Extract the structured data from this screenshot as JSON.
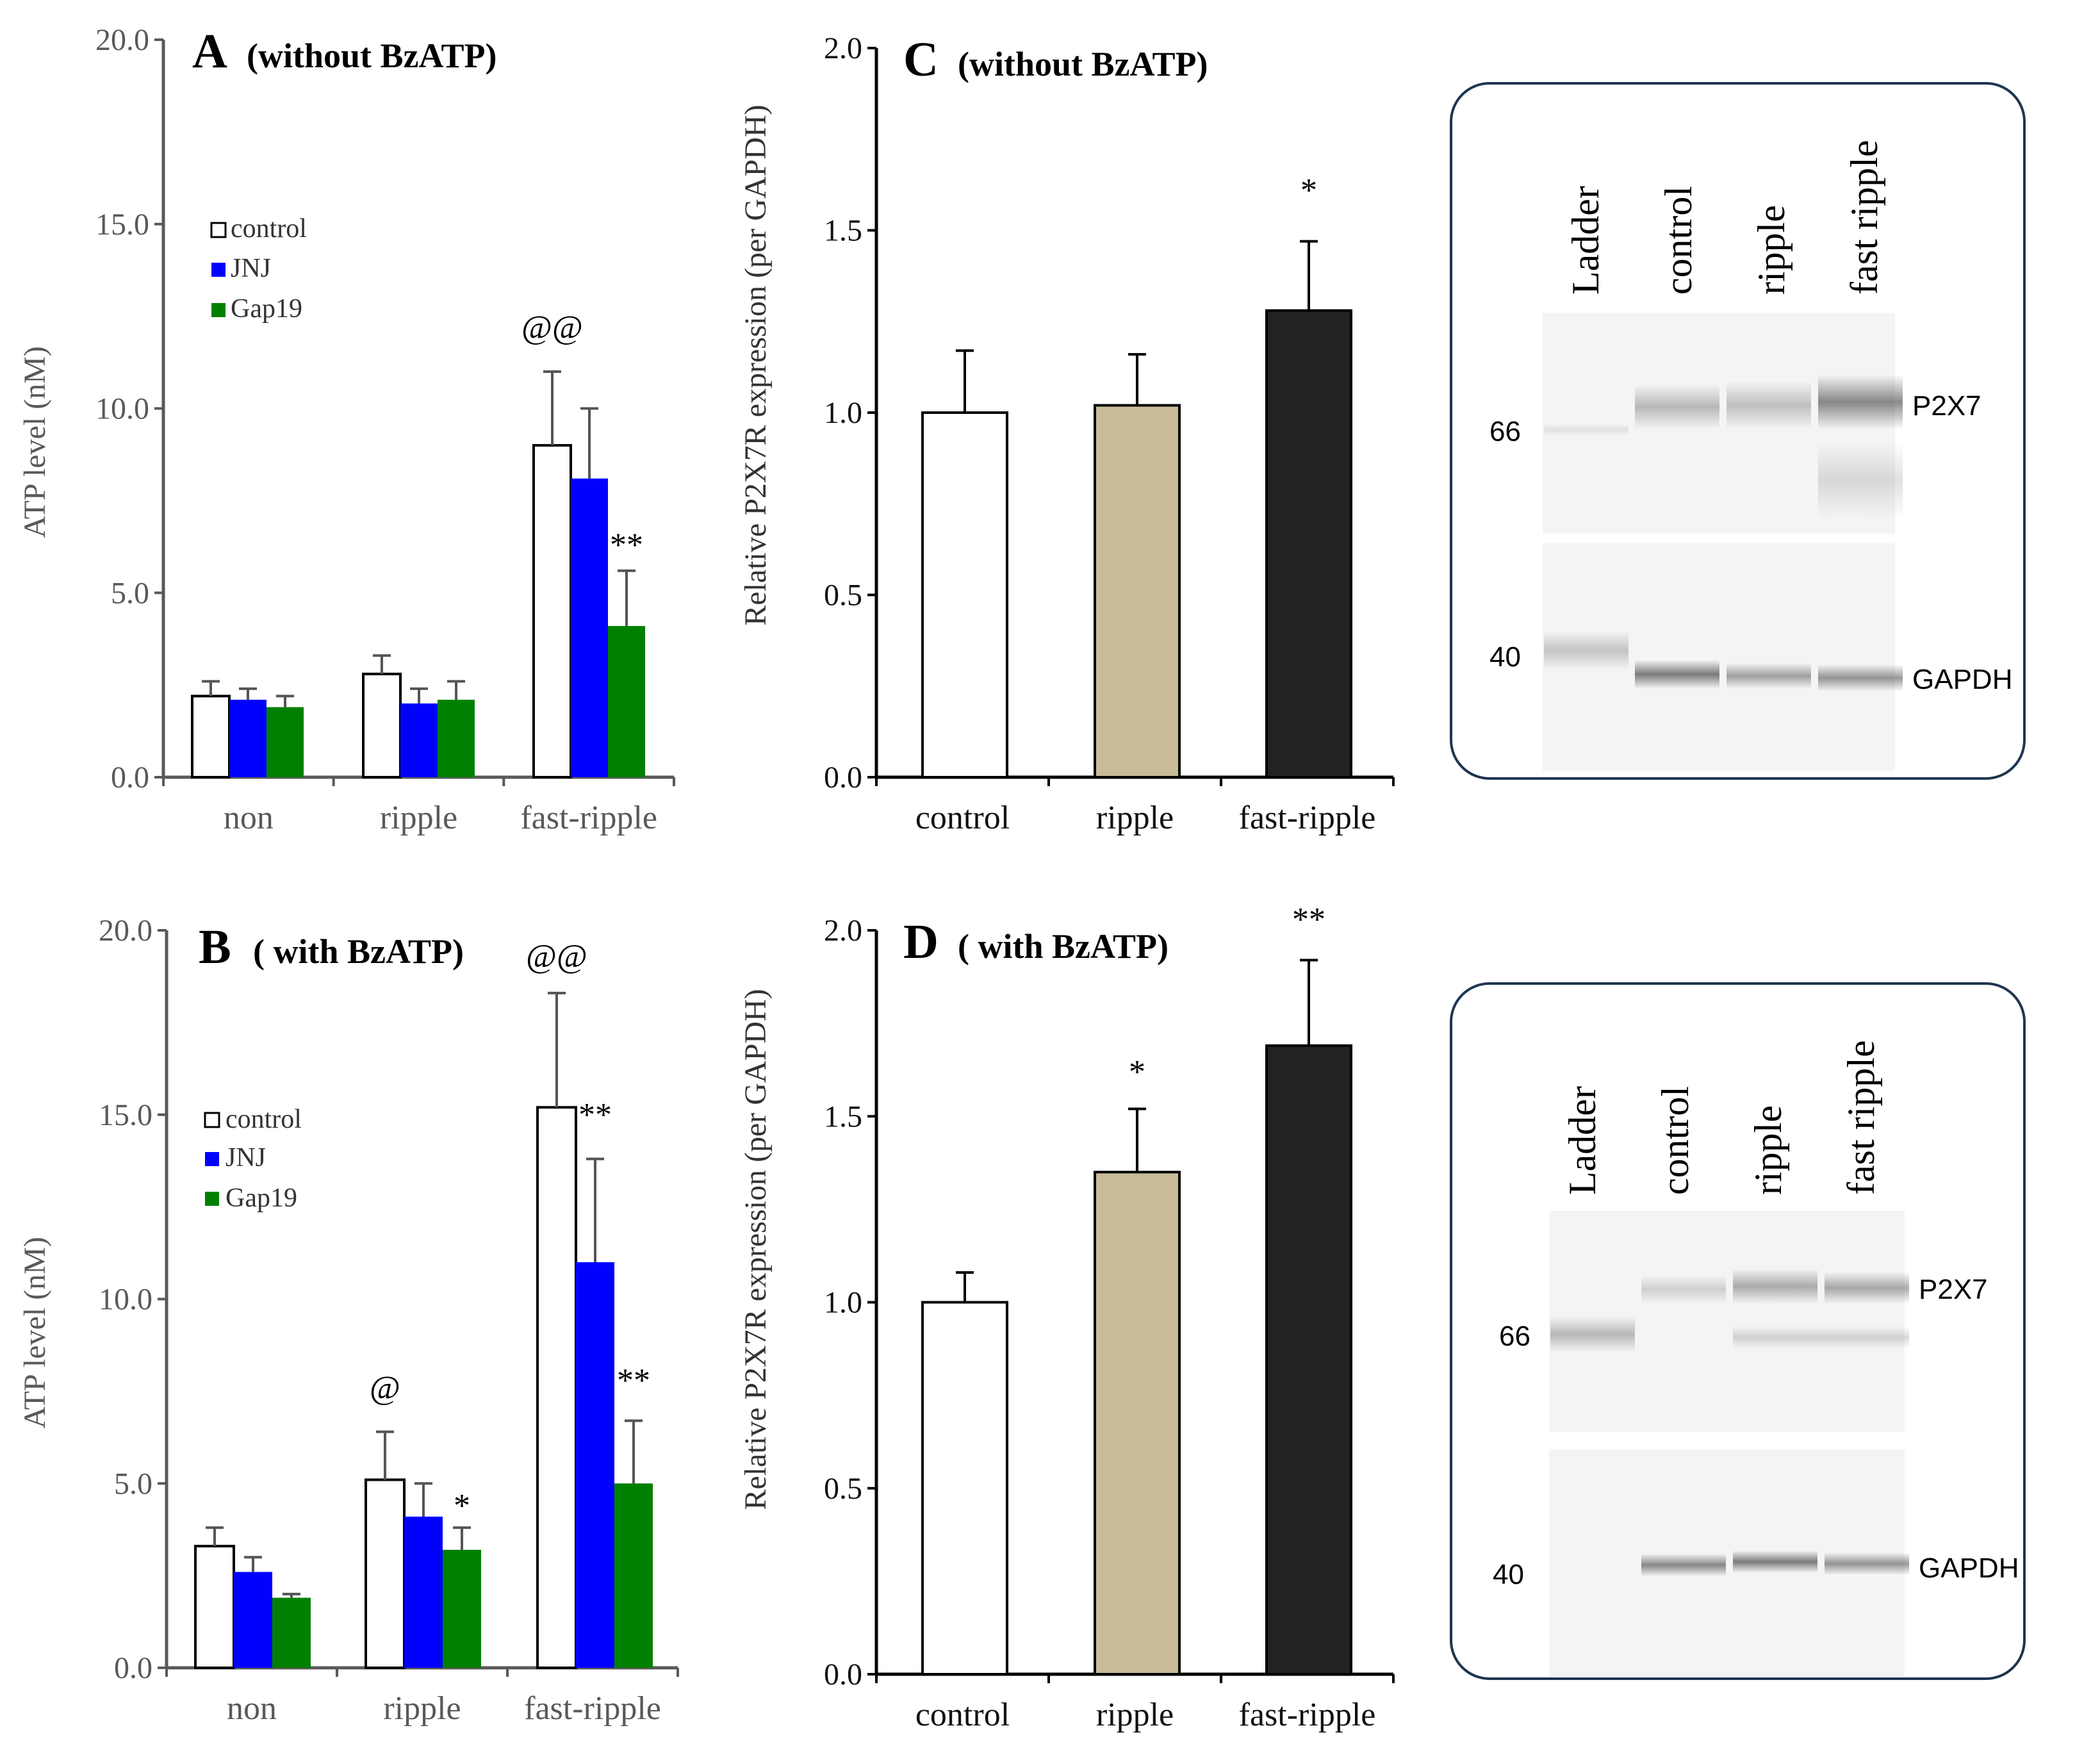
{
  "colors": {
    "control": "#ffffff",
    "jnj": "#0000ff",
    "gap19": "#008000",
    "p2x7_control": "#ffffff",
    "p2x7_ripple": "#c8bd98",
    "p2x7_fast": "#222222",
    "axis": "#595959",
    "gel_bg": "#f4f4f4"
  },
  "chart_data": [
    {
      "id": "A",
      "type": "bar",
      "title_letter": "A",
      "title_text": "(without BzATP)",
      "ylabel": "ATP level (nM)",
      "ylim": [
        0,
        20
      ],
      "yticks": [
        "0.0",
        "5.0",
        "10.0",
        "15.0",
        "20.0"
      ],
      "categories": [
        "non",
        "ripple",
        "fast-ripple"
      ],
      "legend": [
        "control",
        "JNJ",
        "Gap19"
      ],
      "series": [
        {
          "name": "control",
          "values": [
            2.2,
            2.8,
            9.0
          ],
          "errors": [
            0.4,
            0.5,
            2.0
          ]
        },
        {
          "name": "JNJ",
          "values": [
            2.1,
            2.0,
            8.1
          ],
          "errors": [
            0.3,
            0.4,
            1.9
          ]
        },
        {
          "name": "Gap19",
          "values": [
            1.9,
            2.1,
            4.1
          ],
          "errors": [
            0.3,
            0.5,
            1.5
          ]
        }
      ],
      "annotations": [
        {
          "text": "@@",
          "category": 2,
          "series": 0,
          "value": 11.9
        },
        {
          "text": "**",
          "category": 2,
          "series": 2,
          "value": 6.0
        }
      ]
    },
    {
      "id": "B",
      "type": "bar",
      "title_letter": "B",
      "title_text": "( with BzATP)",
      "ylabel": "ATP level (nM)",
      "ylim": [
        0,
        20
      ],
      "yticks": [
        "0.0",
        "5.0",
        "10.0",
        "15.0",
        "20.0"
      ],
      "categories": [
        "non",
        "ripple",
        "fast-ripple"
      ],
      "legend": [
        "control",
        "JNJ",
        "Gap19"
      ],
      "series": [
        {
          "name": "control",
          "values": [
            3.3,
            5.1,
            15.2
          ],
          "errors": [
            0.5,
            1.3,
            3.1
          ]
        },
        {
          "name": "JNJ",
          "values": [
            2.6,
            4.1,
            11.0
          ],
          "errors": [
            0.4,
            0.9,
            2.8
          ]
        },
        {
          "name": "Gap19",
          "values": [
            1.9,
            3.2,
            5.0
          ],
          "errors": [
            0.1,
            0.6,
            1.7
          ]
        }
      ],
      "annotations": [
        {
          "text": "@@",
          "category": 2,
          "series": 0,
          "value": 19.0
        },
        {
          "text": "@",
          "category": 1,
          "series": 0,
          "value": 7.3
        },
        {
          "text": "**",
          "category": 2,
          "series": 1,
          "value": 14.7
        },
        {
          "text": "*",
          "category": 1,
          "series": 2,
          "value": 4.1
        },
        {
          "text": "**",
          "category": 2,
          "series": 2,
          "value": 7.5
        }
      ]
    },
    {
      "id": "C",
      "type": "bar",
      "title_letter": "C",
      "title_text": "(without BzATP)",
      "ylabel": "Relative P2X7R expression (per GAPDH)",
      "ylim": [
        0,
        2
      ],
      "yticks": [
        "0.0",
        "0.5",
        "1.0",
        "1.5",
        "2.0"
      ],
      "categories": [
        "control",
        "ripple",
        "fast-ripple"
      ],
      "values": [
        1.0,
        1.02,
        1.28
      ],
      "errors": [
        0.17,
        0.14,
        0.19
      ],
      "annotations": [
        {
          "text": "*",
          "category": 2,
          "value": 1.58
        }
      ]
    },
    {
      "id": "D",
      "type": "bar",
      "title_letter": "D",
      "title_text": "( with BzATP)",
      "ylabel": "Relative P2X7R expression (per GAPDH)",
      "ylim": [
        0,
        2
      ],
      "yticks": [
        "0.0",
        "0.5",
        "1.0",
        "1.5",
        "2.0"
      ],
      "categories": [
        "control",
        "ripple",
        "fast-ripple"
      ],
      "values": [
        1.0,
        1.35,
        1.69
      ],
      "errors": [
        0.08,
        0.17,
        0.23
      ],
      "annotations": [
        {
          "text": "*",
          "category": 1,
          "value": 1.59
        },
        {
          "text": "**",
          "category": 2,
          "value": 2.0
        }
      ]
    }
  ],
  "blots": [
    {
      "id": "blot-C",
      "lanes": [
        "Ladder",
        "control",
        "ripple",
        "fast ripple"
      ],
      "markers": [
        "66",
        "40"
      ],
      "targets": [
        "P2X7",
        "GAPDH"
      ]
    },
    {
      "id": "blot-D",
      "lanes": [
        "Ladder",
        "control",
        "ripple",
        "fast ripple"
      ],
      "markers": [
        "66",
        "40"
      ],
      "targets": [
        "P2X7",
        "GAPDH"
      ]
    }
  ]
}
